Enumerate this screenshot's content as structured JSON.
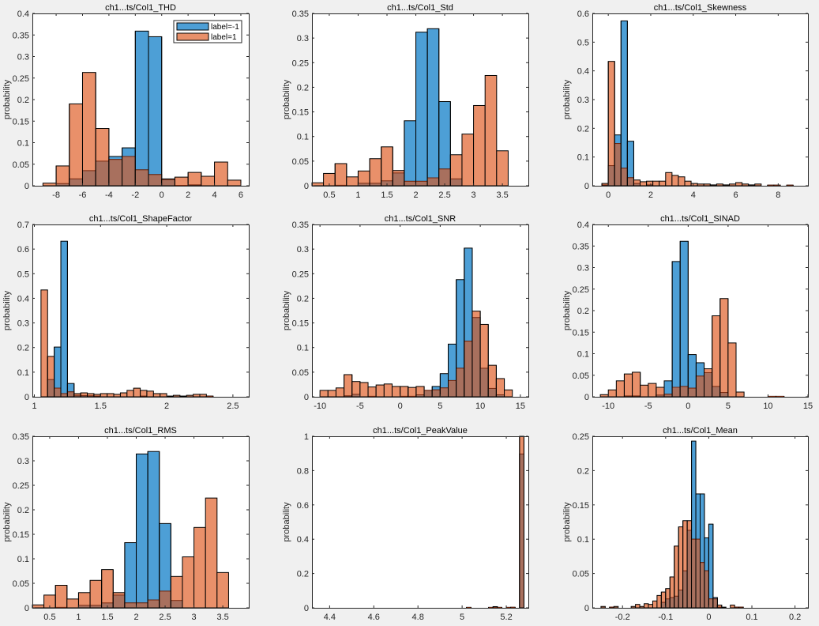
{
  "figure": {
    "legend_entries": [
      "label=-1",
      "label=1"
    ],
    "colors": {
      "label_neg1": "#0072BD",
      "label_pos1": "#D95319"
    }
  },
  "chart_data": [
    {
      "type": "bar",
      "title": "ch1...ts/Col1_THD",
      "xlabel": "",
      "ylabel": "probability",
      "xlim": [
        -9.8,
        6.6
      ],
      "ylim": [
        0,
        0.4
      ],
      "xticks": [
        -8,
        -6,
        -4,
        -2,
        0,
        2,
        4,
        6
      ],
      "yticks": [
        0,
        0.05,
        0.1,
        0.15,
        0.2,
        0.25,
        0.3,
        0.35,
        0.4
      ],
      "legend": "top-right",
      "series": [
        {
          "name": "label=-1",
          "bin_start": -9,
          "bin_width": 1,
          "values": [
            0,
            0.005,
            0.016,
            0.035,
            0.057,
            0.068,
            0.088,
            0.359,
            0.346,
            0.016,
            0.001,
            0.002,
            0,
            0,
            0
          ]
        },
        {
          "name": "label=1",
          "bin_start": -9,
          "bin_width": 1,
          "values": [
            0.006,
            0.046,
            0.19,
            0.263,
            0.133,
            0.061,
            0.068,
            0.037,
            0.026,
            0.014,
            0.02,
            0.031,
            0.022,
            0.055,
            0.013
          ]
        }
      ]
    },
    {
      "type": "bar",
      "title": "ch1...ts/Col1_Std",
      "xlabel": "",
      "ylabel": "probability",
      "xlim": [
        0.2,
        3.95
      ],
      "ylim": [
        0,
        0.35
      ],
      "xticks": [
        0.5,
        1,
        1.5,
        2,
        2.5,
        3,
        3.5
      ],
      "yticks": [
        0,
        0.05,
        0.1,
        0.15,
        0.2,
        0.25,
        0.3,
        0.35
      ],
      "series": [
        {
          "name": "label=-1",
          "bin_start": 0.2,
          "bin_width": 0.2,
          "values": [
            0,
            0,
            0.001,
            0,
            0.005,
            0.005,
            0.01,
            0.026,
            0.132,
            0.312,
            0.319,
            0.171,
            0.014,
            0,
            0,
            0,
            0
          ]
        },
        {
          "name": "label=1",
          "bin_start": 0.2,
          "bin_width": 0.2,
          "values": [
            0.006,
            0.025,
            0.045,
            0.018,
            0.03,
            0.055,
            0.079,
            0.031,
            0.009,
            0.009,
            0.016,
            0.034,
            0.063,
            0.105,
            0.163,
            0.224,
            0.071
          ]
        }
      ]
    },
    {
      "type": "bar",
      "title": "ch1...ts/Col1_Skewness",
      "xlabel": "",
      "ylabel": "probability",
      "xlim": [
        -0.75,
        9.4
      ],
      "ylim": [
        0,
        0.6
      ],
      "xticks": [
        0,
        2,
        4,
        6,
        8
      ],
      "yticks": [
        0,
        0.1,
        0.2,
        0.3,
        0.4,
        0.5,
        0.6
      ],
      "series": [
        {
          "name": "label=-1",
          "bin_start": -0.3,
          "bin_width": 0.3,
          "values": [
            0.003,
            0.07,
            0.177,
            0.574,
            0.155,
            0.008,
            0,
            0.003,
            0,
            0,
            0,
            0,
            0,
            0,
            0,
            0,
            0,
            0,
            0,
            0,
            0,
            0,
            0,
            0,
            0,
            0,
            0.002,
            0.002,
            0,
            0.002
          ]
        },
        {
          "name": "label=1",
          "bin_start": -0.3,
          "bin_width": 0.3,
          "values": [
            0.008,
            0.433,
            0.147,
            0.061,
            0.028,
            0.02,
            0.014,
            0.016,
            0.016,
            0.016,
            0.046,
            0.036,
            0.031,
            0.016,
            0.008,
            0.006,
            0.006,
            0.003,
            0.006,
            0.003,
            0.006,
            0.011,
            0.006,
            0.003,
            0.006,
            0,
            0.002,
            0.002,
            0,
            0.002
          ]
        }
      ]
    },
    {
      "type": "bar",
      "title": "ch1...ts/Col1_ShapeFactor",
      "xlabel": "",
      "ylabel": "probability",
      "xlim": [
        0.985,
        2.62
      ],
      "ylim": [
        0,
        0.7
      ],
      "xticks": [
        1,
        1.5,
        2,
        2.5
      ],
      "yticks": [
        0,
        0.1,
        0.2,
        0.3,
        0.4,
        0.5,
        0.6,
        0.7
      ],
      "series": [
        {
          "name": "label=-1",
          "bin_start": 1.05,
          "bin_width": 0.05,
          "values": [
            0,
            0.07,
            0.202,
            0.632,
            0.054,
            0.006,
            0.005,
            0.004,
            0.003,
            0,
            0,
            0,
            0,
            0,
            0,
            0.003,
            0,
            0,
            0,
            0,
            0,
            0,
            0,
            0,
            0,
            0.002
          ]
        },
        {
          "name": "label=1",
          "bin_start": 1.05,
          "bin_width": 0.05,
          "values": [
            0.434,
            0.164,
            0.035,
            0.013,
            0.02,
            0.013,
            0.016,
            0.013,
            0.01,
            0.013,
            0.013,
            0.01,
            0.016,
            0.026,
            0.035,
            0.026,
            0.023,
            0.013,
            0.013,
            0.003,
            0.006,
            0.003,
            0.006,
            0.01,
            0.01,
            0.003
          ]
        }
      ]
    },
    {
      "type": "bar",
      "title": "ch1...ts/Col1_SNR",
      "xlabel": "",
      "ylabel": "probability",
      "xlim": [
        -11,
        16
      ],
      "ylim": [
        0,
        0.35
      ],
      "xticks": [
        -10,
        -5,
        0,
        5,
        10,
        15
      ],
      "yticks": [
        0,
        0.05,
        0.1,
        0.15,
        0.2,
        0.25,
        0.3,
        0.35
      ],
      "series": [
        {
          "name": "label=-1",
          "bin_start": -10,
          "bin_width": 1,
          "values": [
            0,
            0,
            0,
            0.002,
            0.005,
            0,
            0.001,
            0,
            0,
            0,
            0.001,
            0.001,
            0.004,
            0.013,
            0.021,
            0.047,
            0.107,
            0.238,
            0.302,
            0.161,
            0.058,
            0.017,
            0.004,
            0,
            0
          ]
        },
        {
          "name": "label=1",
          "bin_start": -10,
          "bin_width": 1,
          "values": [
            0.013,
            0.013,
            0.018,
            0.045,
            0.031,
            0.029,
            0.02,
            0.024,
            0.026,
            0.021,
            0.021,
            0.019,
            0.021,
            0.013,
            0.014,
            0.018,
            0.033,
            0.058,
            0.113,
            0.174,
            0.147,
            0.064,
            0.037,
            0.014,
            0
          ]
        }
      ]
    },
    {
      "type": "bar",
      "title": "ch1...ts/Col1_SINAD",
      "xlabel": "",
      "ylabel": "probability",
      "xlim": [
        -12,
        15
      ],
      "ylim": [
        0,
        0.4
      ],
      "xticks": [
        -10,
        -5,
        0,
        5,
        10,
        15
      ],
      "yticks": [
        0,
        0.05,
        0.1,
        0.15,
        0.2,
        0.25,
        0.3,
        0.35,
        0.4
      ],
      "series": [
        {
          "name": "label=-1",
          "bin_start": -11,
          "bin_width": 1,
          "values": [
            0,
            0,
            0,
            0.002,
            0.002,
            0,
            0,
            0.004,
            0.037,
            0.314,
            0.361,
            0.098,
            0.079,
            0.056,
            0.024,
            0.01,
            0,
            0,
            0,
            0,
            0,
            0.001,
            0.001
          ]
        },
        {
          "name": "label=1",
          "bin_start": -11,
          "bin_width": 1,
          "values": [
            0.005,
            0.016,
            0.037,
            0.053,
            0.057,
            0.027,
            0.031,
            0.022,
            0.006,
            0.022,
            0.024,
            0.02,
            0.048,
            0.065,
            0.188,
            0.228,
            0.125,
            0.011,
            0,
            0,
            0,
            0.001,
            0.001
          ]
        }
      ]
    },
    {
      "type": "bar",
      "title": "ch1...ts/Col1_RMS",
      "xlabel": "",
      "ylabel": "probability",
      "xlim": [
        0.2,
        3.95
      ],
      "ylim": [
        0,
        0.35
      ],
      "xticks": [
        0.5,
        1,
        1.5,
        2,
        2.5,
        3,
        3.5
      ],
      "yticks": [
        0,
        0.05,
        0.1,
        0.15,
        0.2,
        0.25,
        0.3,
        0.35
      ],
      "series": [
        {
          "name": "label=-1",
          "bin_start": 0.2,
          "bin_width": 0.2,
          "values": [
            0,
            0,
            0.001,
            0,
            0.005,
            0.005,
            0.01,
            0.026,
            0.133,
            0.314,
            0.319,
            0.172,
            0.015,
            0,
            0,
            0,
            0
          ]
        },
        {
          "name": "label=1",
          "bin_start": 0.2,
          "bin_width": 0.2,
          "values": [
            0.006,
            0.026,
            0.046,
            0.018,
            0.031,
            0.056,
            0.078,
            0.031,
            0.01,
            0.01,
            0.016,
            0.034,
            0.064,
            0.104,
            0.164,
            0.224,
            0.072
          ]
        }
      ]
    },
    {
      "type": "bar",
      "title": "ch1...ts/Col1_PeakValue",
      "xlabel": "",
      "ylabel": "probability",
      "xlim": [
        4.32,
        5.3
      ],
      "ylim": [
        0,
        1
      ],
      "xticks": [
        4.4,
        4.6,
        4.8,
        5,
        5.2
      ],
      "yticks": [
        0,
        0.2,
        0.4,
        0.6,
        0.8,
        1
      ],
      "series": [
        {
          "name": "label=-1",
          "bin_start": 5.02,
          "bin_width": 0.02,
          "values": [
            0.003,
            0,
            0,
            0,
            0,
            0.003,
            0.007,
            0.003,
            0,
            0.003,
            0.003,
            0,
            0.897
          ]
        },
        {
          "name": "label=1",
          "bin_start": 5.02,
          "bin_width": 0.02,
          "values": [
            0.002,
            0,
            0,
            0,
            0,
            0.002,
            0.002,
            0.002,
            0,
            0.002,
            0.003,
            0,
            1.0
          ]
        }
      ]
    },
    {
      "type": "bar",
      "title": "ch1...ts/Col1_Mean",
      "xlabel": "",
      "ylabel": "probability",
      "xlim": [
        -0.27,
        0.23
      ],
      "ylim": [
        0,
        0.25
      ],
      "xticks": [
        -0.2,
        -0.1,
        0,
        0.1,
        0.2
      ],
      "yticks": [
        0,
        0.05,
        0.1,
        0.15,
        0.2,
        0.25
      ],
      "series": [
        {
          "name": "label=-1",
          "bin_start": -0.25,
          "bin_width": 0.01,
          "values": [
            0,
            0,
            0.001,
            0,
            0,
            0,
            0,
            0,
            0,
            0,
            0,
            0,
            0,
            0,
            0.008,
            0.013,
            0.015,
            0.017,
            0.026,
            0.054,
            0.113,
            0.243,
            0.166,
            0.166,
            0.102,
            0.122,
            0.015,
            0.001,
            0,
            0,
            0,
            0.001,
            0.001,
            0
          ]
        },
        {
          "name": "label=1",
          "bin_start": -0.25,
          "bin_width": 0.01,
          "values": [
            0.002,
            0,
            0.001,
            0.002,
            0,
            0,
            0,
            0.002,
            0.005,
            0.002,
            0.006,
            0.005,
            0.01,
            0.018,
            0.023,
            0.028,
            0.045,
            0.09,
            0.118,
            0.127,
            0.127,
            0.1,
            0.1,
            0.066,
            0.054,
            0.013,
            0.013,
            0.004,
            0.001,
            0,
            0.004,
            0.001,
            0.001,
            0
          ]
        }
      ]
    }
  ]
}
